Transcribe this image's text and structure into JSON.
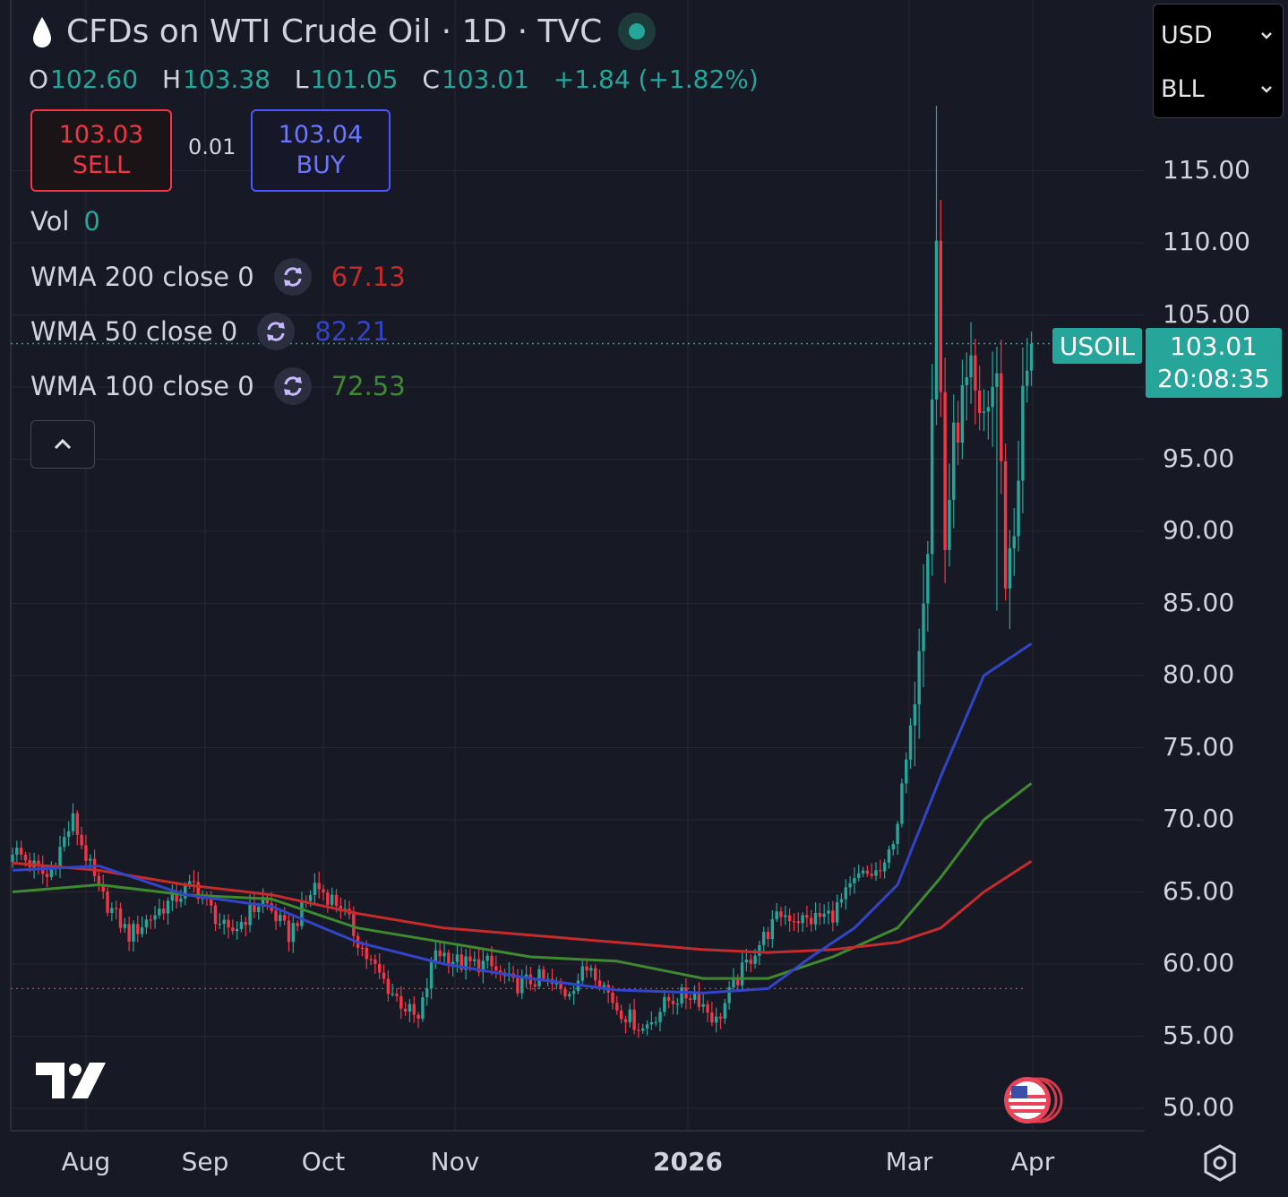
{
  "header": {
    "title": "CFDs on WTI Crude Oil · 1D · TVC",
    "ohlc": [
      {
        "k": "O",
        "v": "102.60"
      },
      {
        "k": "H",
        "v": "103.38"
      },
      {
        "k": "L",
        "v": "101.05"
      },
      {
        "k": "C",
        "v": "103.01"
      }
    ],
    "change": "+1.84 (+1.82%)"
  },
  "trade": {
    "sell_price": "103.03",
    "sell_label": "SELL",
    "spread": "0.01",
    "buy_price": "103.04",
    "buy_label": "BUY"
  },
  "indicators": {
    "vol_label": "Vol",
    "vol_value": "0",
    "items": [
      {
        "label": "WMA 200 close 0",
        "value": "67.13",
        "color": "#c62b2b"
      },
      {
        "label": "WMA 50 close 0",
        "value": "82.21",
        "color": "#3244c8"
      },
      {
        "label": "WMA 100 close 0",
        "value": "72.53",
        "color": "#3f8a2e"
      }
    ]
  },
  "selectors": {
    "currency": "USD",
    "unit": "BLL"
  },
  "price_axis": {
    "symbol": "USOIL",
    "last_price": "103.01",
    "countdown": "20:08:35"
  },
  "colors": {
    "up": "#26a69a",
    "down": "#f23645",
    "background": "#171a25",
    "grid": "#242834"
  },
  "chart_data": {
    "type": "candlestick",
    "ylim": [
      48,
      121
    ],
    "y_ticks": [
      "115.00",
      "110.00",
      "105.00",
      "100.00",
      "95.00",
      "90.00",
      "85.00",
      "80.00",
      "75.00",
      "70.00",
      "65.00",
      "60.00",
      "55.00",
      "50.00"
    ],
    "x_ticks": [
      {
        "label": "Aug",
        "bold": false
      },
      {
        "label": "Sep",
        "bold": false
      },
      {
        "label": "Oct",
        "bold": false
      },
      {
        "label": "Nov",
        "bold": false
      },
      {
        "label": "2026",
        "bold": true
      },
      {
        "label": "Mar",
        "bold": false
      },
      {
        "label": "Apr",
        "bold": false
      }
    ],
    "last_close": 103.01,
    "prev_close_line": 58.3,
    "anchors": [
      [
        0,
        68
      ],
      [
        8,
        66
      ],
      [
        14,
        70
      ],
      [
        20,
        65
      ],
      [
        27,
        62
      ],
      [
        35,
        64
      ],
      [
        42,
        65.5
      ],
      [
        50,
        62
      ],
      [
        58,
        64.5
      ],
      [
        64,
        62
      ],
      [
        70,
        65.5
      ],
      [
        76,
        64
      ],
      [
        82,
        60.5
      ],
      [
        88,
        58
      ],
      [
        94,
        56
      ],
      [
        98,
        61
      ],
      [
        104,
        60
      ],
      [
        110,
        60
      ],
      [
        116,
        58.5
      ],
      [
        122,
        59
      ],
      [
        128,
        58
      ],
      [
        134,
        60
      ],
      [
        140,
        57
      ],
      [
        146,
        55.5
      ],
      [
        152,
        57.5
      ],
      [
        158,
        58
      ],
      [
        163,
        56
      ],
      [
        167,
        58.5
      ],
      [
        172,
        61
      ],
      [
        178,
        63.5
      ],
      [
        184,
        63
      ],
      [
        190,
        63.5
      ],
      [
        196,
        66
      ],
      [
        202,
        66.5
      ],
      [
        205,
        70
      ],
      [
        208,
        76
      ],
      [
        212,
        90
      ],
      [
        214,
        110
      ],
      [
        216,
        89
      ],
      [
        218,
        96
      ],
      [
        220,
        99
      ],
      [
        222,
        100.5
      ],
      [
        224,
        97
      ],
      [
        226,
        99
      ],
      [
        228,
        101
      ],
      [
        230,
        87
      ],
      [
        232,
        90
      ],
      [
        234,
        99
      ],
      [
        236,
        103
      ]
    ],
    "spikes": [
      [
        214,
        119.5
      ],
      [
        224,
        101.5
      ],
      [
        228,
        84.5
      ]
    ],
    "wma50": [
      [
        0,
        66.5
      ],
      [
        20,
        66.8
      ],
      [
        40,
        64.8
      ],
      [
        60,
        64.0
      ],
      [
        80,
        61.5
      ],
      [
        100,
        60.0
      ],
      [
        120,
        59.0
      ],
      [
        140,
        58.2
      ],
      [
        160,
        58.0
      ],
      [
        175,
        58.3
      ],
      [
        185,
        60.5
      ],
      [
        195,
        62.5
      ],
      [
        205,
        65.5
      ],
      [
        215,
        73
      ],
      [
        225,
        80
      ],
      [
        236,
        82.21
      ]
    ],
    "wma100": [
      [
        0,
        65.0
      ],
      [
        20,
        65.5
      ],
      [
        40,
        64.8
      ],
      [
        60,
        64.5
      ],
      [
        80,
        62.5
      ],
      [
        100,
        61.5
      ],
      [
        120,
        60.5
      ],
      [
        140,
        60.2
      ],
      [
        160,
        59.0
      ],
      [
        175,
        59.0
      ],
      [
        190,
        60.5
      ],
      [
        205,
        62.5
      ],
      [
        215,
        66
      ],
      [
        225,
        70
      ],
      [
        236,
        72.53
      ]
    ],
    "wma200": [
      [
        0,
        67.0
      ],
      [
        20,
        66.5
      ],
      [
        40,
        65.5
      ],
      [
        60,
        64.8
      ],
      [
        80,
        63.5
      ],
      [
        100,
        62.5
      ],
      [
        120,
        62.0
      ],
      [
        140,
        61.5
      ],
      [
        160,
        61.0
      ],
      [
        175,
        60.8
      ],
      [
        190,
        61.0
      ],
      [
        205,
        61.5
      ],
      [
        215,
        62.5
      ],
      [
        225,
        65
      ],
      [
        236,
        67.13
      ]
    ]
  }
}
